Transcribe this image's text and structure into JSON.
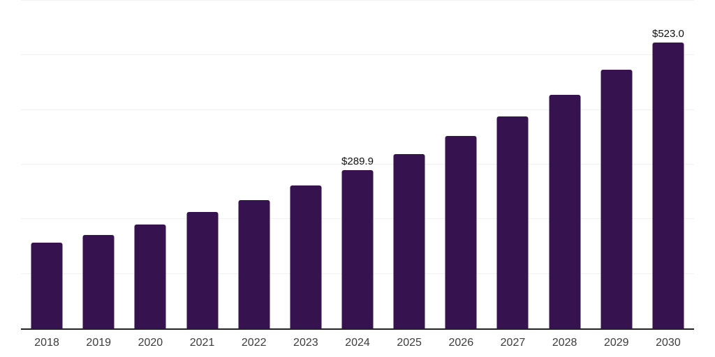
{
  "chart_data": {
    "type": "bar",
    "title": "",
    "xlabel": "",
    "ylabel": "",
    "categories": [
      "2018",
      "2019",
      "2020",
      "2021",
      "2022",
      "2023",
      "2024",
      "2025",
      "2026",
      "2027",
      "2028",
      "2029",
      "2030"
    ],
    "values": [
      156.5,
      171.5,
      190.5,
      212.7,
      235.3,
      262.0,
      289.9,
      319.5,
      352.3,
      388.5,
      427.7,
      473.5,
      523.0
    ],
    "data_labels": [
      "",
      "",
      "",
      "",
      "",
      "",
      "$289.9",
      "",
      "",
      "",
      "",
      "",
      "$523.0"
    ],
    "ylim": [
      0,
      600
    ],
    "gridline_interval": 100,
    "grid": "horizontal",
    "legend": "none"
  },
  "colors": {
    "bar": "#36124F",
    "gridline": "#F0F0F0",
    "axis_line": "#222222",
    "tick_label": "#3C3C3C",
    "data_label": "#111111",
    "background": "#FFFFFF"
  }
}
